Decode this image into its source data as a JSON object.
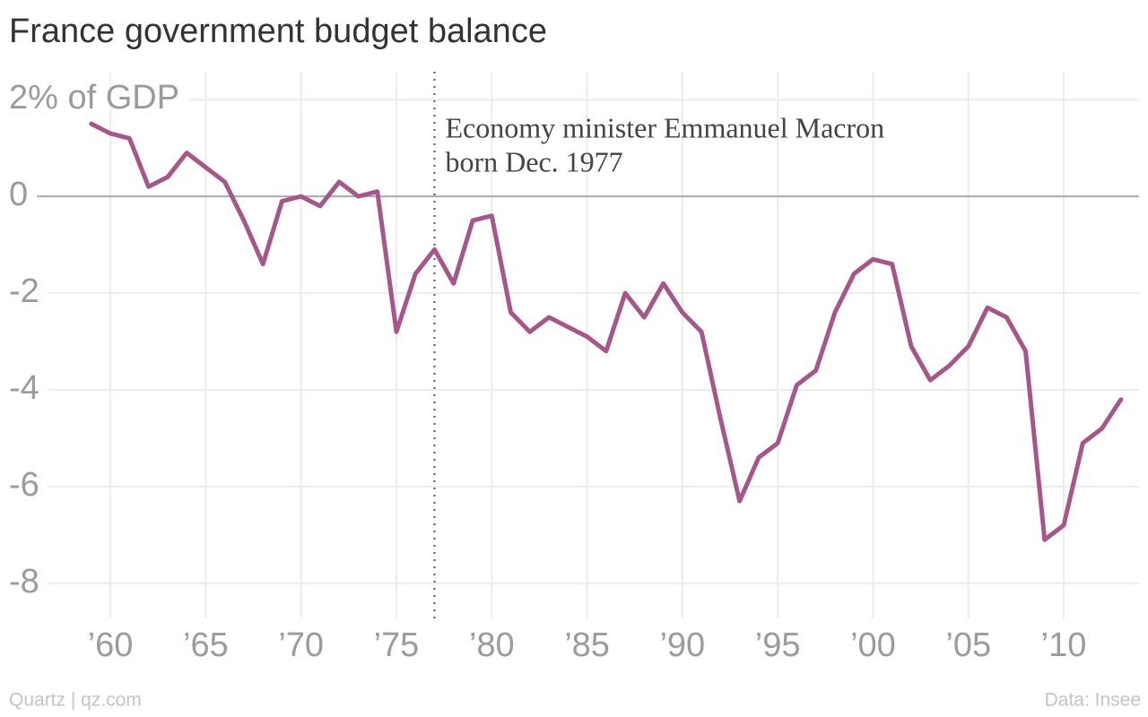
{
  "chart_data": {
    "type": "line",
    "title": "France government budget balance",
    "x": [
      1959,
      1960,
      1961,
      1962,
      1963,
      1964,
      1965,
      1966,
      1967,
      1968,
      1969,
      1970,
      1971,
      1972,
      1973,
      1974,
      1975,
      1976,
      1977,
      1978,
      1979,
      1980,
      1981,
      1982,
      1983,
      1984,
      1985,
      1986,
      1987,
      1988,
      1989,
      1990,
      1991,
      1992,
      1993,
      1994,
      1995,
      1996,
      1997,
      1998,
      1999,
      2000,
      2001,
      2002,
      2003,
      2004,
      2005,
      2006,
      2007,
      2008,
      2009,
      2010,
      2011,
      2012,
      2013
    ],
    "series": [
      {
        "color": "#a5578a",
        "values": [
          1.5,
          1.3,
          1.2,
          0.2,
          0.4,
          0.9,
          0.6,
          0.3,
          -0.5,
          -1.4,
          -0.1,
          0.0,
          -0.2,
          0.3,
          0.0,
          0.1,
          -2.8,
          -1.6,
          -1.1,
          -1.8,
          -0.5,
          -0.4,
          -2.4,
          -2.8,
          -2.5,
          -2.7,
          -2.9,
          -3.2,
          -2.0,
          -2.5,
          -1.8,
          -2.4,
          -2.8,
          -4.6,
          -6.3,
          -5.4,
          -5.1,
          -3.9,
          -3.6,
          -2.4,
          -1.6,
          -1.3,
          -1.4,
          -3.1,
          -3.8,
          -3.5,
          -3.1,
          -2.3,
          -2.5,
          -3.2,
          -7.1,
          -6.8,
          -5.1,
          -4.8,
          -4.2
        ]
      }
    ],
    "xlim": [
      1954.21,
      2014.42
    ],
    "xticks": [
      {
        "value": 1960,
        "label": "’60"
      },
      {
        "value": 1965,
        "label": "’65"
      },
      {
        "value": 1970,
        "label": "’70"
      },
      {
        "value": 1975,
        "label": "’75"
      },
      {
        "value": 1980,
        "label": "’80"
      },
      {
        "value": 1985,
        "label": "’85"
      },
      {
        "value": 1990,
        "label": "’90"
      },
      {
        "value": 1995,
        "label": "’95"
      },
      {
        "value": 2000,
        "label": "’00"
      },
      {
        "value": 2005,
        "label": "’05"
      },
      {
        "value": 2010,
        "label": "’10"
      }
    ],
    "ylim": [
      -8.8,
      2.3
    ],
    "yticks": [
      -8,
      -6,
      -4,
      -2,
      0,
      {
        "value": 2,
        "label": "2% of GDP"
      }
    ],
    "grid": true,
    "annotation": {
      "x": 1977,
      "lines": [
        "Economy minister Emmanuel Macron",
        "born Dec. 1977"
      ]
    },
    "source_left": "Quartz | qz.com",
    "source_right": "Data: Insee"
  }
}
